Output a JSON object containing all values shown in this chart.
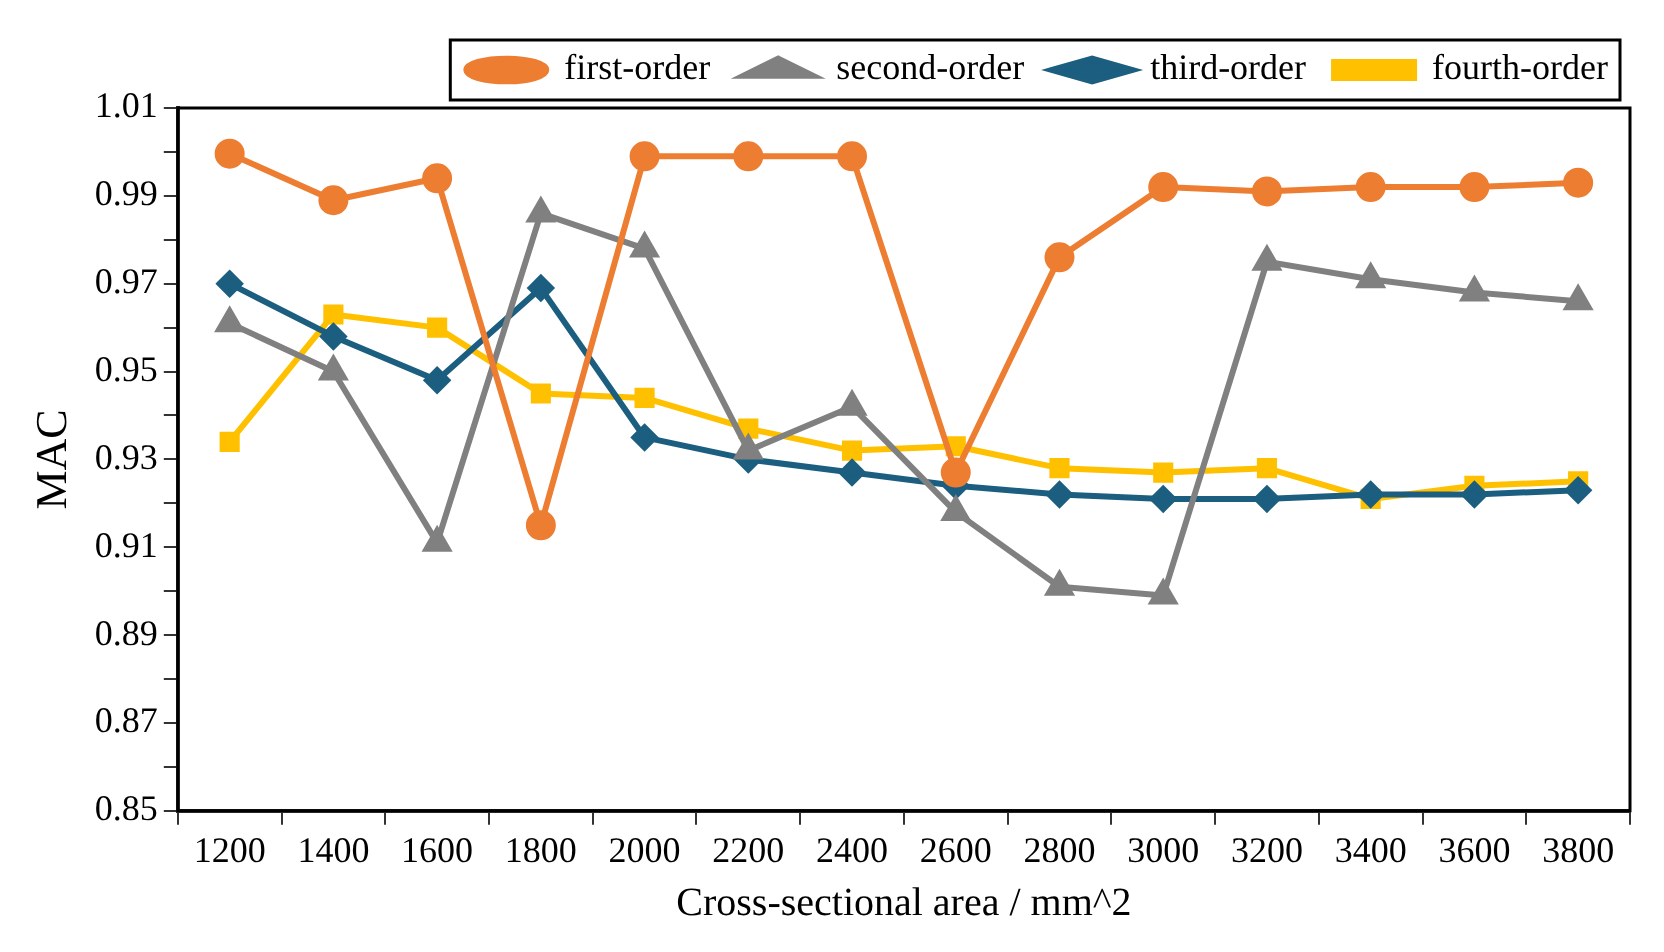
{
  "chart_data": {
    "type": "line",
    "xlabel": "Cross-sectional area / mm^2",
    "ylabel": "MAC",
    "categories": [
      "1200",
      "1400",
      "1600",
      "1800",
      "2000",
      "2200",
      "2400",
      "2600",
      "2800",
      "3000",
      "3200",
      "3400",
      "3600",
      "3800"
    ],
    "series": [
      {
        "name": "first-order",
        "color": "#ed7d31",
        "marker": "circle",
        "values": [
          0.9996,
          0.989,
          0.994,
          0.915,
          0.999,
          0.999,
          0.999,
          0.927,
          0.976,
          0.992,
          0.991,
          0.992,
          0.992,
          0.993
        ]
      },
      {
        "name": "second-order",
        "color": "#808080",
        "marker": "triangle",
        "values": [
          0.961,
          0.95,
          0.911,
          0.986,
          0.978,
          0.932,
          0.942,
          0.918,
          0.901,
          0.899,
          0.975,
          0.971,
          0.968,
          0.966
        ]
      },
      {
        "name": "third-order",
        "color": "#1b5e7f",
        "marker": "diamond",
        "values": [
          0.97,
          0.958,
          0.948,
          0.969,
          0.935,
          0.93,
          0.927,
          0.924,
          0.922,
          0.921,
          0.921,
          0.922,
          0.922,
          0.923
        ]
      },
      {
        "name": "fourth-order",
        "color": "#ffc000",
        "marker": "square",
        "values": [
          0.934,
          0.963,
          0.96,
          0.945,
          0.944,
          0.937,
          0.932,
          0.933,
          0.928,
          0.927,
          0.928,
          0.921,
          0.924,
          0.925
        ]
      }
    ],
    "ylim": [
      0.85,
      1.01
    ],
    "yticks": [
      0.85,
      {
        "value": 0.86,
        "label": null
      },
      0.87,
      {
        "value": 0.88,
        "label": null
      },
      0.89,
      {
        "value": 0.9,
        "label": null
      },
      0.91,
      {
        "value": 0.92,
        "label": null
      },
      0.93,
      {
        "value": 0.94,
        "label": null
      },
      0.95,
      {
        "value": 0.96,
        "label": null
      },
      0.97,
      {
        "value": 0.98,
        "label": null
      },
      0.99,
      {
        "value": 1.0,
        "label": null
      },
      1.01
    ],
    "grid": false,
    "legend": "top",
    "line_style": "solid"
  }
}
